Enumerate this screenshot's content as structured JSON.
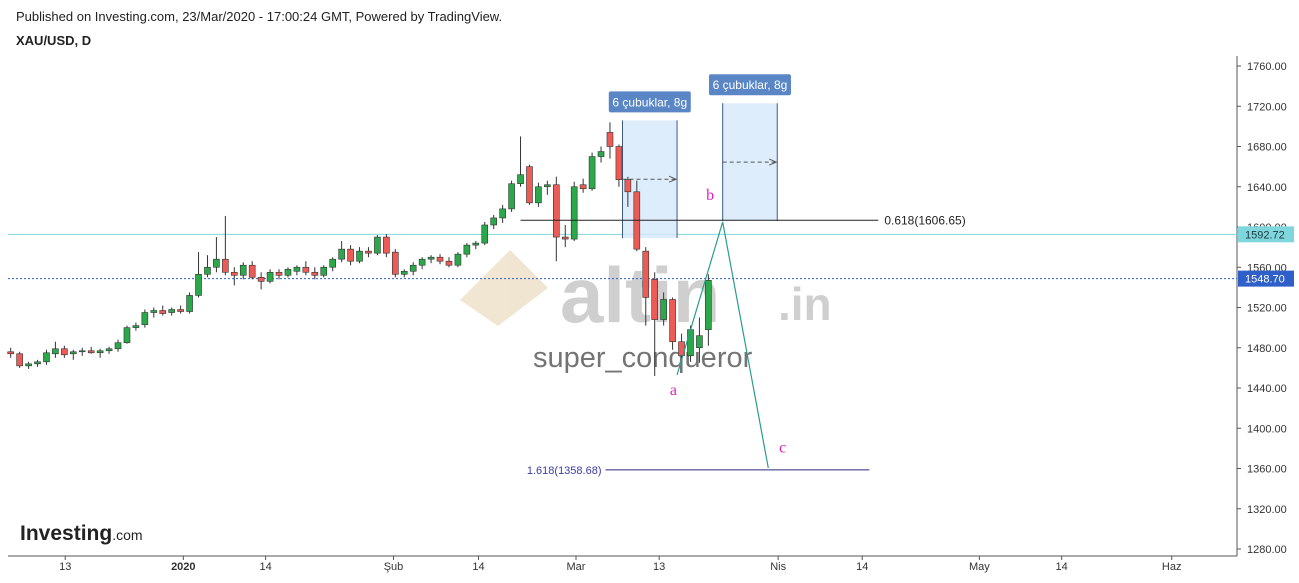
{
  "header": {
    "published": "Published on Investing.com, 23/Mar/2020 - 17:00:24 GMT, Powered by TradingView.",
    "symbol": "XAU/USD, D"
  },
  "watermark": {
    "brand": "altin",
    "suffix": ".in",
    "author": "super_conqueror"
  },
  "logo": {
    "name": "Investing",
    "suffix": ".com"
  },
  "chart_data": {
    "type": "candlestick",
    "up_color": "#2aa84a",
    "down_color": "#ec5b55",
    "xlim": [
      -0.3,
      137.1
    ],
    "xticks": [
      {
        "value": 6.1,
        "label": "13"
      },
      {
        "value": 19.3,
        "label": "2020"
      },
      {
        "value": 28.5,
        "label": "14"
      },
      {
        "value": 42.8,
        "label": "Şub"
      },
      {
        "value": 52.3,
        "label": "14"
      },
      {
        "value": 63.2,
        "label": "Mar"
      },
      {
        "value": 72.5,
        "label": "13"
      },
      {
        "value": 85.8,
        "label": "Nis"
      },
      {
        "value": 95.2,
        "label": "14"
      },
      {
        "value": 108.3,
        "label": "May"
      },
      {
        "value": 117.5,
        "label": "14"
      },
      {
        "value": 129.8,
        "label": "Haz"
      }
    ],
    "ylim": [
      1280,
      1760
    ],
    "yticks": [
      {
        "value": 1280,
        "label": "1280.00"
      },
      {
        "value": 1320,
        "label": "1320.00"
      },
      {
        "value": 1360,
        "label": "1360.00"
      },
      {
        "value": 1400,
        "label": "1400.00"
      },
      {
        "value": 1440,
        "label": "1440.00"
      },
      {
        "value": 1480,
        "label": "1480.00"
      },
      {
        "value": 1520,
        "label": "1520.00"
      },
      {
        "value": 1560,
        "label": "1560.00"
      },
      {
        "value": 1600,
        "label": "1600.00"
      },
      {
        "value": 1640,
        "label": "1640.00"
      },
      {
        "value": 1680,
        "label": "1680.00"
      },
      {
        "value": 1720,
        "label": "1720.00"
      },
      {
        "value": 1760,
        "label": "1760.00"
      }
    ],
    "open": [
      1476,
      1474,
      1462,
      1464,
      1466,
      1474,
      1479,
      1474,
      1476,
      1477,
      1475,
      1477,
      1479,
      1485,
      1500,
      1503,
      1515,
      1517,
      1515,
      1518,
      1516,
      1532,
      1553,
      1560,
      1568,
      1555,
      1552,
      1562,
      1550,
      1546,
      1555,
      1552,
      1556,
      1560,
      1555,
      1552,
      1560,
      1568,
      1578,
      1566,
      1576,
      1574,
      1590,
      1575,
      1553,
      1556,
      1562,
      1568,
      1570,
      1566,
      1562,
      1573,
      1582,
      1584,
      1602,
      1609,
      1618,
      1643,
      1660,
      1624,
      1640,
      1642,
      1590,
      1588,
      1642,
      1638,
      1670,
      1694,
      1680,
      1647,
      1635,
      1576,
      1548,
      1508,
      1528,
      1486,
      1472,
      1480,
      1498
    ],
    "high": [
      1480,
      1476,
      1466,
      1468,
      1478,
      1486,
      1482,
      1478,
      1480,
      1481,
      1479,
      1481,
      1488,
      1502,
      1505,
      1518,
      1520,
      1522,
      1520,
      1522,
      1535,
      1575,
      1572,
      1590,
      1611,
      1560,
      1565,
      1566,
      1555,
      1558,
      1558,
      1560,
      1562,
      1566,
      1560,
      1562,
      1570,
      1586,
      1582,
      1580,
      1580,
      1592,
      1593,
      1578,
      1558,
      1565,
      1570,
      1572,
      1573,
      1570,
      1575,
      1584,
      1586,
      1605,
      1612,
      1622,
      1646,
      1690,
      1662,
      1644,
      1646,
      1650,
      1602,
      1645,
      1648,
      1674,
      1680,
      1704,
      1682,
      1650,
      1646,
      1580,
      1555,
      1535,
      1530,
      1494,
      1502,
      1510,
      1553
    ],
    "low": [
      1470,
      1460,
      1459,
      1461,
      1463,
      1470,
      1470,
      1468,
      1472,
      1474,
      1470,
      1474,
      1476,
      1484,
      1497,
      1500,
      1510,
      1512,
      1512,
      1514,
      1514,
      1530,
      1550,
      1555,
      1552,
      1542,
      1548,
      1548,
      1538,
      1544,
      1548,
      1550,
      1552,
      1552,
      1548,
      1550,
      1556,
      1565,
      1562,
      1564,
      1570,
      1572,
      1570,
      1550,
      1550,
      1552,
      1558,
      1564,
      1563,
      1560,
      1560,
      1570,
      1578,
      1582,
      1598,
      1604,
      1615,
      1640,
      1622,
      1620,
      1632,
      1566,
      1580,
      1586,
      1634,
      1636,
      1664,
      1668,
      1640,
      1620,
      1576,
      1502,
      1452,
      1502,
      1478,
      1468,
      1466,
      1465,
      1482
    ],
    "close": [
      1474,
      1462,
      1464,
      1466,
      1475,
      1479,
      1473,
      1476,
      1477,
      1475,
      1477,
      1479,
      1485,
      1500,
      1502,
      1515,
      1517,
      1514,
      1518,
      1516,
      1532,
      1553,
      1560,
      1568,
      1555,
      1552,
      1562,
      1550,
      1546,
      1555,
      1552,
      1558,
      1560,
      1555,
      1552,
      1560,
      1568,
      1578,
      1566,
      1576,
      1574,
      1590,
      1574,
      1553,
      1556,
      1562,
      1568,
      1570,
      1566,
      1562,
      1573,
      1582,
      1584,
      1602,
      1609,
      1618,
      1643,
      1652,
      1624,
      1640,
      1642,
      1590,
      1588,
      1640,
      1638,
      1670,
      1675,
      1680,
      1647,
      1635,
      1578,
      1530,
      1508,
      1528,
      1486,
      1472,
      1498,
      1492,
      1547
    ],
    "price_lines": [
      {
        "value": 1592.72,
        "label": "1592.72",
        "color": "#7fd6dc",
        "style": "solid",
        "text_color": "#1a3a3e"
      },
      {
        "value": 1548.7,
        "label": "1548.70",
        "color": "#2f5fc8",
        "style": "dotted",
        "text_color": "#ffffff"
      }
    ],
    "fib_levels": [
      {
        "value": 1606.65,
        "label": "0.618(1606.65)",
        "x": [
          57,
          97
        ],
        "color": "#222222",
        "label_side": "right"
      },
      {
        "value": 1358.68,
        "label": "1.618(1358.68)",
        "x": [
          66.5,
          96
        ],
        "color": "#2a2a7a",
        "label_side": "left"
      }
    ],
    "ranges": [
      {
        "label": "6 çubuklar, 8g",
        "x": [
          68.4,
          74.5
        ],
        "y": [
          1589,
          1706
        ]
      },
      {
        "label": "6 çubuklar, 8g",
        "x": [
          79.6,
          85.7
        ],
        "y": [
          1606,
          1723
        ]
      }
    ],
    "wave": {
      "x": [
        74.5,
        79.6,
        84.7
      ],
      "y": [
        1453,
        1605,
        1360.5
      ],
      "color": "#2a9d8f"
    },
    "wave_labels": [
      {
        "text": "a",
        "x": 74.1,
        "y": 1433
      },
      {
        "text": "b",
        "x": 78.2,
        "y": 1627
      },
      {
        "text": "c",
        "x": 86.3,
        "y": 1376
      }
    ]
  }
}
